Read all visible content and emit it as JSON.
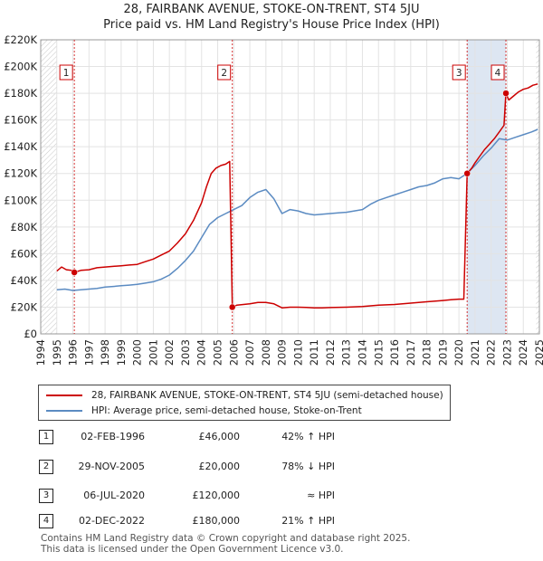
{
  "title": "28, FAIRBANK AVENUE, STOKE-ON-TRENT, ST4 5JU",
  "subtitle": "Price paid vs. HM Land Registry's House Price Index (HPI)",
  "colors": {
    "property": "#cc0000",
    "hpi": "#5b8bc2",
    "band": "#dde6f2",
    "marker_line": "#cc0000"
  },
  "chart_data": {
    "type": "line",
    "title": "28, FAIRBANK AVENUE, STOKE-ON-TRENT, ST4 5JU",
    "subtitle": "Price paid vs. HM Land Registry's House Price Index (HPI)",
    "xlim": [
      1994.0,
      2025.0
    ],
    "ylim": [
      0,
      220000
    ],
    "x_ticks": [
      1994,
      1995,
      1996,
      1997,
      1998,
      1999,
      2000,
      2001,
      2002,
      2003,
      2004,
      2005,
      2006,
      2007,
      2008,
      2009,
      2010,
      2011,
      2012,
      2013,
      2014,
      2015,
      2016,
      2017,
      2018,
      2019,
      2020,
      2021,
      2022,
      2023,
      2024,
      2025
    ],
    "y_ticks": [
      {
        "value": 0,
        "label": "£0"
      },
      {
        "value": 20000,
        "label": "£20K"
      },
      {
        "value": 40000,
        "label": "£40K"
      },
      {
        "value": 60000,
        "label": "£60K"
      },
      {
        "value": 80000,
        "label": "£80K"
      },
      {
        "value": 100000,
        "label": "£100K"
      },
      {
        "value": 120000,
        "label": "£120K"
      },
      {
        "value": 140000,
        "label": "£140K"
      },
      {
        "value": 160000,
        "label": "£160K"
      },
      {
        "value": 180000,
        "label": "£180K"
      },
      {
        "value": 200000,
        "label": "£200K"
      },
      {
        "value": 220000,
        "label": "£220K"
      }
    ],
    "hatch_ranges": [
      [
        1994.0,
        1995.0
      ],
      [
        2024.8,
        2025.0
      ]
    ],
    "series": [
      {
        "name": "28, FAIRBANK AVENUE, STOKE-ON-TRENT, ST4 5JU (semi-detached house)",
        "color": "#cc0000",
        "x": [
          1995.0,
          1995.3,
          1995.6,
          1995.9,
          1996.09,
          1996.5,
          1997.0,
          1997.5,
          1998.0,
          1998.5,
          1999.0,
          1999.5,
          2000.0,
          2000.5,
          2001.0,
          2001.5,
          2002.0,
          2002.5,
          2003.0,
          2003.5,
          2004.0,
          2004.3,
          2004.6,
          2004.9,
          2005.2,
          2005.5,
          2005.75,
          2005.91,
          2006.2,
          2006.6,
          2007.0,
          2007.5,
          2008.0,
          2008.5,
          2009.0,
          2009.5,
          2010.0,
          2010.5,
          2011.0,
          2011.5,
          2012.0,
          2013.0,
          2014.0,
          2015.0,
          2016.0,
          2017.0,
          2018.0,
          2019.0,
          2019.5,
          2020.0,
          2020.3,
          2020.51,
          2020.8,
          2021.0,
          2021.3,
          2021.6,
          2021.9,
          2022.2,
          2022.5,
          2022.8,
          2022.92,
          2023.1,
          2023.4,
          2023.7,
          2024.0,
          2024.3,
          2024.6,
          2024.9
        ],
        "y": [
          47000,
          50000,
          48000,
          47500,
          46000,
          47500,
          48000,
          49500,
          50000,
          50500,
          51000,
          51500,
          52000,
          54000,
          56000,
          59000,
          62000,
          68000,
          75000,
          85000,
          98000,
          110000,
          120000,
          124000,
          126000,
          127000,
          129000,
          20000,
          21500,
          22000,
          22500,
          23500,
          23500,
          22500,
          19500,
          20000,
          20000,
          19800,
          19500,
          19500,
          19700,
          20000,
          20500,
          21500,
          22000,
          23000,
          24000,
          25000,
          25500,
          26000,
          26000,
          120000,
          124000,
          128000,
          133000,
          138000,
          142000,
          146000,
          151000,
          156000,
          180000,
          175000,
          178000,
          181000,
          183000,
          184000,
          186000,
          187000
        ]
      },
      {
        "name": "HPI: Average price, semi-detached house, Stoke-on-Trent",
        "color": "#5b8bc2",
        "x": [
          1995.0,
          1995.5,
          1996.0,
          1996.5,
          1997.0,
          1997.5,
          1998.0,
          1998.5,
          1999.0,
          1999.5,
          2000.0,
          2000.5,
          2001.0,
          2001.5,
          2002.0,
          2002.5,
          2003.0,
          2003.5,
          2004.0,
          2004.5,
          2005.0,
          2005.5,
          2006.0,
          2006.5,
          2007.0,
          2007.5,
          2008.0,
          2008.5,
          2009.0,
          2009.5,
          2010.0,
          2010.5,
          2011.0,
          2011.5,
          2012.0,
          2012.5,
          2013.0,
          2013.5,
          2014.0,
          2014.5,
          2015.0,
          2015.5,
          2016.0,
          2016.5,
          2017.0,
          2017.5,
          2018.0,
          2018.5,
          2019.0,
          2019.5,
          2020.0,
          2020.5,
          2021.0,
          2021.5,
          2022.0,
          2022.5,
          2023.0,
          2023.5,
          2024.0,
          2024.5,
          2024.9
        ],
        "y": [
          33000,
          33500,
          32500,
          33000,
          33500,
          34000,
          35000,
          35500,
          36000,
          36500,
          37000,
          38000,
          39000,
          41000,
          44000,
          49000,
          55000,
          62000,
          72000,
          82000,
          87000,
          90000,
          93000,
          96000,
          102000,
          106000,
          108000,
          101000,
          90000,
          93000,
          92000,
          90000,
          89000,
          89500,
          90000,
          90500,
          91000,
          92000,
          93000,
          97000,
          100000,
          102000,
          104000,
          106000,
          108000,
          110000,
          111000,
          113000,
          116000,
          117000,
          116000,
          120000,
          126000,
          133000,
          139000,
          146000,
          145000,
          147000,
          149000,
          151000,
          153000
        ]
      }
    ],
    "sales": [
      {
        "num": "1",
        "x": 1996.09,
        "y": 46000
      },
      {
        "num": "2",
        "x": 2005.91,
        "y": 20000
      },
      {
        "num": "3",
        "x": 2020.51,
        "y": 120000
      },
      {
        "num": "4",
        "x": 2022.92,
        "y": 180000
      }
    ]
  },
  "legend": {
    "property_label": "28, FAIRBANK AVENUE, STOKE-ON-TRENT, ST4 5JU (semi-detached house)",
    "hpi_label": "HPI: Average price, semi-detached house, Stoke-on-Trent"
  },
  "transactions": [
    {
      "num": "1",
      "date": "02-FEB-1996",
      "price": "£46,000",
      "hpi": "42% ↑ HPI"
    },
    {
      "num": "2",
      "date": "29-NOV-2005",
      "price": "£20,000",
      "hpi": "78% ↓ HPI"
    },
    {
      "num": "3",
      "date": "06-JUL-2020",
      "price": "£120,000",
      "hpi": "≈ HPI"
    },
    {
      "num": "4",
      "date": "02-DEC-2022",
      "price": "£180,000",
      "hpi": "21% ↑ HPI"
    }
  ],
  "footer": {
    "line1": "Contains HM Land Registry data © Crown copyright and database right 2025.",
    "line2": "This data is licensed under the Open Government Licence v3.0."
  }
}
